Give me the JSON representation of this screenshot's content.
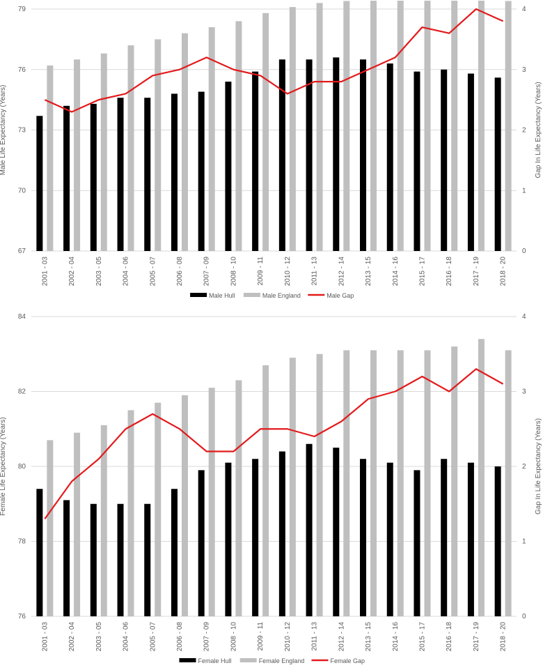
{
  "colors": {
    "hull": "#000000",
    "england": "#bfbfbf",
    "gap": "#e31a1c",
    "grid": "#d9d9d9",
    "text": "#595959"
  },
  "chart_data": [
    {
      "type": "bar",
      "id": "male",
      "title": "",
      "categories": [
        "2001 - 03",
        "2002 - 04",
        "2003 - 05",
        "2004 - 06",
        "2005 - 07",
        "2006 - 08",
        "2007 - 09",
        "2008 - 10",
        "2009 - 11",
        "2010 - 12",
        "2011 - 13",
        "2012 - 14",
        "2013 - 15",
        "2014 - 16",
        "2015 - 17",
        "2016 - 18",
        "2017 - 19",
        "2018 - 20"
      ],
      "ylabel": "Male Life Expectancy (Years)",
      "y2label": "Gap In Life Expectancy (Years)",
      "ylim": [
        67,
        79
      ],
      "yticks": [
        67,
        70,
        73,
        76,
        79
      ],
      "y2lim": [
        0,
        4
      ],
      "y2ticks": [
        0,
        1,
        2,
        3,
        4
      ],
      "grid": true,
      "legend_position": "bottom",
      "series": [
        {
          "name": "Male Hull",
          "kind": "bar",
          "axis": "left",
          "values": [
            73.7,
            74.2,
            74.3,
            74.6,
            74.6,
            74.8,
            74.9,
            75.4,
            75.9,
            76.5,
            76.5,
            76.6,
            76.5,
            76.3,
            75.9,
            76.0,
            75.8,
            75.6
          ]
        },
        {
          "name": "Male England",
          "kind": "bar",
          "axis": "left",
          "values": [
            76.2,
            76.5,
            76.8,
            77.2,
            77.5,
            77.8,
            78.1,
            78.4,
            78.8,
            79.1,
            79.3,
            79.4,
            79.5,
            79.6,
            79.6,
            79.6,
            79.8,
            79.4
          ]
        },
        {
          "name": "Male Gap",
          "kind": "line",
          "axis": "right",
          "values": [
            2.5,
            2.3,
            2.5,
            2.6,
            2.9,
            3.0,
            3.2,
            3.0,
            2.9,
            2.6,
            2.8,
            2.8,
            3.0,
            3.2,
            3.7,
            3.6,
            4.0,
            3.8
          ]
        }
      ]
    },
    {
      "type": "bar",
      "id": "female",
      "title": "",
      "categories": [
        "2001 - 03",
        "2002 - 04",
        "2003 - 05",
        "2004 - 06",
        "2005 - 07",
        "2006 - 08",
        "2007 - 09",
        "2008 - 10",
        "2009 - 11",
        "2010 - 12",
        "2011 - 13",
        "2012 - 14",
        "2013 - 15",
        "2014 - 16",
        "2015 - 17",
        "2016 - 18",
        "2017 - 19",
        "2018 - 20"
      ],
      "ylabel": "Female Life Expectancy (Years)",
      "y2label": "Gap In Life Expectancy (Years)",
      "ylim": [
        76,
        84
      ],
      "yticks": [
        76,
        78,
        80,
        82,
        84
      ],
      "y2lim": [
        0,
        4
      ],
      "y2ticks": [
        0,
        1,
        2,
        3,
        4
      ],
      "grid": true,
      "legend_position": "bottom",
      "series": [
        {
          "name": "Female Hull",
          "kind": "bar",
          "axis": "left",
          "values": [
            79.4,
            79.1,
            79.0,
            79.0,
            79.0,
            79.4,
            79.9,
            80.1,
            80.2,
            80.4,
            80.6,
            80.5,
            80.2,
            80.1,
            79.9,
            80.2,
            80.1,
            80.0
          ]
        },
        {
          "name": "Female England",
          "kind": "bar",
          "axis": "left",
          "values": [
            80.7,
            80.9,
            81.1,
            81.5,
            81.7,
            81.9,
            82.1,
            82.3,
            82.7,
            82.9,
            83.0,
            83.1,
            83.1,
            83.1,
            83.1,
            83.2,
            83.4,
            83.1
          ]
        },
        {
          "name": "Female Gap",
          "kind": "line",
          "axis": "right",
          "values": [
            1.3,
            1.8,
            2.1,
            2.5,
            2.7,
            2.5,
            2.2,
            2.2,
            2.5,
            2.5,
            2.4,
            2.6,
            2.9,
            3.0,
            3.2,
            3.0,
            3.3,
            3.1
          ]
        }
      ]
    }
  ]
}
